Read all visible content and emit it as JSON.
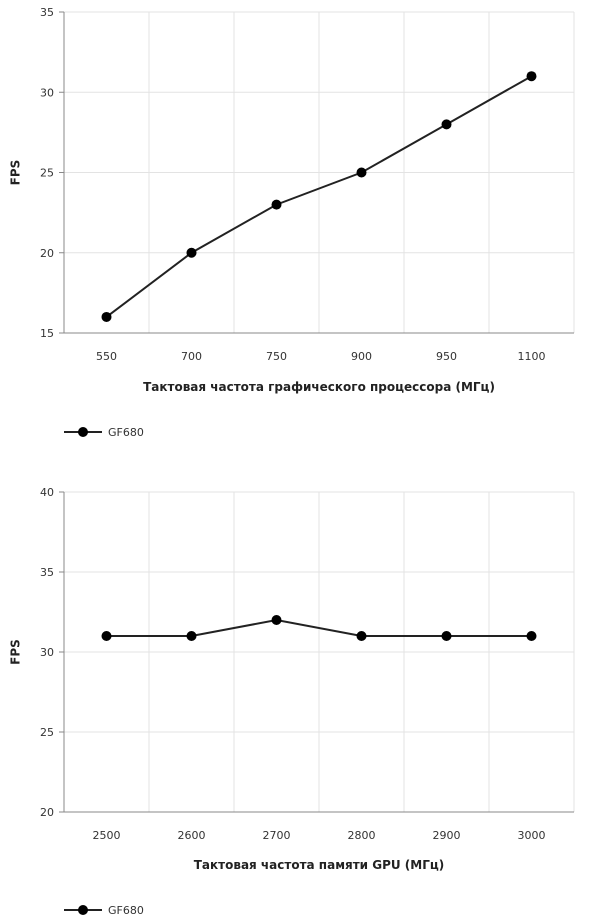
{
  "chart_data": [
    {
      "type": "line",
      "categories": [
        "550",
        "700",
        "750",
        "900",
        "950",
        "1100"
      ],
      "series": [
        {
          "name": "GF680",
          "values": [
            16,
            20,
            23,
            25,
            28,
            31
          ],
          "color": "#222222"
        }
      ],
      "xlabel": "Тактовая частота графического процессора (МГц)",
      "ylabel": "FPS",
      "ylim": [
        15,
        35
      ],
      "yticks": [
        15,
        20,
        25,
        30,
        35
      ],
      "grid": true,
      "legend": "bottom-left"
    },
    {
      "type": "line",
      "categories": [
        "2500",
        "2600",
        "2700",
        "2800",
        "2900",
        "3000"
      ],
      "series": [
        {
          "name": "GF680",
          "values": [
            31,
            31,
            32,
            31,
            31,
            31
          ],
          "color": "#222222"
        }
      ],
      "xlabel": "Тактовая частота памяти GPU (МГц)",
      "ylabel": "FPS",
      "ylim": [
        20,
        40
      ],
      "yticks": [
        20,
        25,
        30,
        35,
        40
      ],
      "grid": true,
      "legend": "bottom-left"
    }
  ]
}
